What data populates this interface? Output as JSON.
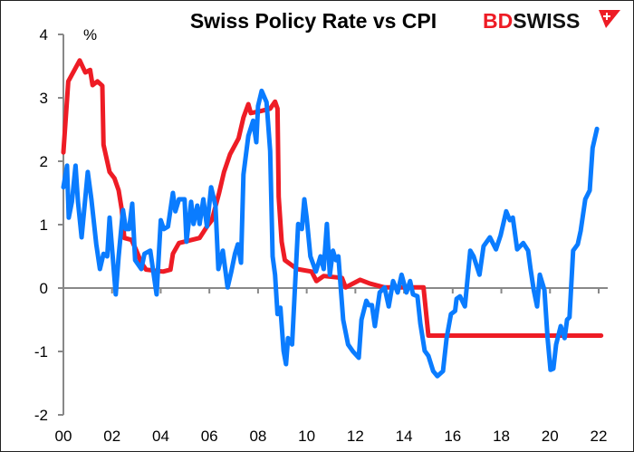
{
  "logo": {
    "part1": "BD",
    "part2": "SWISS",
    "part1_color": "#ee1c25",
    "part2_color": "#111111"
  },
  "chart_data": {
    "type": "line",
    "title": "Swiss Policy Rate vs CPI",
    "ylabel": "%",
    "xlabel": "",
    "xlim": [
      2000,
      2022.4
    ],
    "ylim": [
      -2,
      4
    ],
    "yticks": [
      -2,
      -1,
      0,
      1,
      2,
      3,
      4
    ],
    "xticks": [
      2000,
      2002,
      2004,
      2006,
      2008,
      2010,
      2012,
      2014,
      2016,
      2018,
      2020,
      2022
    ],
    "xtick_labels": [
      "00",
      "02",
      "04",
      "06",
      "08",
      "10",
      "12",
      "14",
      "16",
      "18",
      "20",
      "22"
    ],
    "ytick_labels": [
      "-2",
      "-1",
      "0",
      "1",
      "2",
      "3",
      "4"
    ],
    "grid": false,
    "legend": "none",
    "series": [
      {
        "color": "#ee1c25",
        "points": [
          [
            2000.0,
            2.14
          ],
          [
            2000.2,
            3.26
          ],
          [
            2000.67,
            3.59
          ],
          [
            2000.9,
            3.4
          ],
          [
            2001.1,
            3.44
          ],
          [
            2001.2,
            3.2
          ],
          [
            2001.4,
            3.26
          ],
          [
            2001.6,
            3.19
          ],
          [
            2001.65,
            2.26
          ],
          [
            2001.9,
            1.83
          ],
          [
            2002.1,
            1.73
          ],
          [
            2002.27,
            1.54
          ],
          [
            2002.4,
            1.23
          ],
          [
            2002.5,
            0.79
          ],
          [
            2002.8,
            0.76
          ],
          [
            2003.0,
            0.59
          ],
          [
            2003.2,
            0.4
          ],
          [
            2003.4,
            0.29
          ],
          [
            2004.1,
            0.26
          ],
          [
            2004.4,
            0.29
          ],
          [
            2004.5,
            0.54
          ],
          [
            2004.75,
            0.71
          ],
          [
            2005.6,
            0.79
          ],
          [
            2005.9,
            0.97
          ],
          [
            2006.1,
            1.07
          ],
          [
            2006.4,
            1.5
          ],
          [
            2006.6,
            1.83
          ],
          [
            2006.85,
            2.11
          ],
          [
            2007.2,
            2.36
          ],
          [
            2007.4,
            2.69
          ],
          [
            2007.6,
            2.9
          ],
          [
            2007.7,
            2.76
          ],
          [
            2008.1,
            2.79
          ],
          [
            2008.5,
            2.83
          ],
          [
            2008.7,
            2.94
          ],
          [
            2008.8,
            2.83
          ],
          [
            2008.85,
            1.44
          ],
          [
            2008.97,
            0.73
          ],
          [
            2009.1,
            0.44
          ],
          [
            2009.6,
            0.3
          ],
          [
            2010.2,
            0.26
          ],
          [
            2010.4,
            0.11
          ],
          [
            2010.7,
            0.19
          ],
          [
            2011.45,
            0.16
          ],
          [
            2011.6,
            0.01
          ],
          [
            2012.2,
            0.13
          ],
          [
            2012.6,
            0.07
          ],
          [
            2013.2,
            0.01
          ],
          [
            2014.8,
            0.01
          ],
          [
            2015.0,
            -0.75
          ],
          [
            2022.1,
            -0.75
          ]
        ]
      },
      {
        "color": "#0a7cff",
        "points": [
          [
            2000.0,
            1.59
          ],
          [
            2000.15,
            1.93
          ],
          [
            2000.22,
            1.11
          ],
          [
            2000.35,
            1.36
          ],
          [
            2000.5,
            1.93
          ],
          [
            2000.6,
            1.36
          ],
          [
            2000.75,
            0.8
          ],
          [
            2001.0,
            1.83
          ],
          [
            2001.15,
            1.4
          ],
          [
            2001.35,
            0.69
          ],
          [
            2001.5,
            0.3
          ],
          [
            2001.65,
            0.54
          ],
          [
            2001.8,
            0.5
          ],
          [
            2001.9,
            1.11
          ],
          [
            2002.15,
            -0.1
          ],
          [
            2002.27,
            0.5
          ],
          [
            2002.45,
            1.23
          ],
          [
            2002.57,
            0.93
          ],
          [
            2002.7,
            0.93
          ],
          [
            2002.83,
            1.33
          ],
          [
            2002.95,
            0.44
          ],
          [
            2003.2,
            0.3
          ],
          [
            2003.33,
            0.54
          ],
          [
            2003.57,
            0.59
          ],
          [
            2003.83,
            -0.1
          ],
          [
            2004.0,
            1.07
          ],
          [
            2004.13,
            0.93
          ],
          [
            2004.3,
            0.97
          ],
          [
            2004.5,
            1.5
          ],
          [
            2004.6,
            1.21
          ],
          [
            2004.75,
            1.4
          ],
          [
            2004.98,
            1.4
          ],
          [
            2005.06,
            0.73
          ],
          [
            2005.25,
            1.36
          ],
          [
            2005.35,
            1.01
          ],
          [
            2005.5,
            1.3
          ],
          [
            2005.6,
            1.01
          ],
          [
            2005.75,
            1.4
          ],
          [
            2005.9,
            0.97
          ],
          [
            2006.07,
            1.59
          ],
          [
            2006.25,
            1.3
          ],
          [
            2006.37,
            0.3
          ],
          [
            2006.55,
            0.59
          ],
          [
            2006.75,
            0.01
          ],
          [
            2006.9,
            0.26
          ],
          [
            2007.05,
            0.54
          ],
          [
            2007.17,
            0.69
          ],
          [
            2007.3,
            0.4
          ],
          [
            2007.4,
            1.79
          ],
          [
            2007.6,
            2.4
          ],
          [
            2007.8,
            2.64
          ],
          [
            2007.93,
            2.3
          ],
          [
            2008.0,
            2.87
          ],
          [
            2008.15,
            3.11
          ],
          [
            2008.35,
            2.93
          ],
          [
            2008.5,
            2.16
          ],
          [
            2008.6,
            0.5
          ],
          [
            2008.7,
            0.21
          ],
          [
            2008.8,
            -0.41
          ],
          [
            2008.92,
            -0.31
          ],
          [
            2009.05,
            -0.99
          ],
          [
            2009.15,
            -1.2
          ],
          [
            2009.23,
            -0.79
          ],
          [
            2009.4,
            -0.89
          ],
          [
            2009.65,
            1.01
          ],
          [
            2009.8,
            0.93
          ],
          [
            2009.9,
            1.4
          ],
          [
            2010.0,
            1.11
          ],
          [
            2010.15,
            0.5
          ],
          [
            2010.38,
            0.26
          ],
          [
            2010.57,
            0.5
          ],
          [
            2010.7,
            0.3
          ],
          [
            2010.83,
            1.01
          ],
          [
            2010.95,
            0.21
          ],
          [
            2011.08,
            0.59
          ],
          [
            2011.2,
            0.44
          ],
          [
            2011.3,
            0.5
          ],
          [
            2011.5,
            -0.5
          ],
          [
            2011.7,
            -0.89
          ],
          [
            2011.9,
            -1.0
          ],
          [
            2012.14,
            -1.1
          ],
          [
            2012.25,
            -0.5
          ],
          [
            2012.45,
            -0.2
          ],
          [
            2012.55,
            -0.27
          ],
          [
            2012.68,
            -0.27
          ],
          [
            2012.8,
            -0.6
          ],
          [
            2013.0,
            -0.07
          ],
          [
            2013.2,
            0.01
          ],
          [
            2013.37,
            -0.29
          ],
          [
            2013.55,
            0.11
          ],
          [
            2013.74,
            -0.07
          ],
          [
            2013.9,
            0.21
          ],
          [
            2014.1,
            -0.07
          ],
          [
            2014.25,
            0.11
          ],
          [
            2014.37,
            -0.1
          ],
          [
            2014.55,
            -0.13
          ],
          [
            2014.67,
            -0.56
          ],
          [
            2014.85,
            -0.99
          ],
          [
            2015.0,
            -1.07
          ],
          [
            2015.2,
            -1.31
          ],
          [
            2015.37,
            -1.39
          ],
          [
            2015.6,
            -1.31
          ],
          [
            2015.75,
            -0.79
          ],
          [
            2015.93,
            -0.41
          ],
          [
            2016.1,
            -0.36
          ],
          [
            2016.16,
            -0.17
          ],
          [
            2016.3,
            -0.13
          ],
          [
            2016.5,
            -0.29
          ],
          [
            2016.72,
            0.59
          ],
          [
            2016.86,
            0.5
          ],
          [
            2017.1,
            0.21
          ],
          [
            2017.27,
            0.66
          ],
          [
            2017.53,
            0.8
          ],
          [
            2017.78,
            0.61
          ],
          [
            2017.97,
            0.83
          ],
          [
            2018.2,
            1.21
          ],
          [
            2018.35,
            1.07
          ],
          [
            2018.47,
            1.11
          ],
          [
            2018.65,
            0.61
          ],
          [
            2018.9,
            0.71
          ],
          [
            2019.1,
            0.59
          ],
          [
            2019.2,
            0.3
          ],
          [
            2019.33,
            -0.03
          ],
          [
            2019.47,
            -0.29
          ],
          [
            2019.58,
            0.21
          ],
          [
            2019.77,
            -0.03
          ],
          [
            2019.9,
            -0.79
          ],
          [
            2020.02,
            -1.29
          ],
          [
            2020.14,
            -1.27
          ],
          [
            2020.25,
            -0.89
          ],
          [
            2020.44,
            -0.6
          ],
          [
            2020.6,
            -0.79
          ],
          [
            2020.7,
            -0.5
          ],
          [
            2020.8,
            -0.46
          ],
          [
            2020.95,
            0.59
          ],
          [
            2021.14,
            0.69
          ],
          [
            2021.26,
            0.9
          ],
          [
            2021.45,
            1.4
          ],
          [
            2021.63,
            1.54
          ],
          [
            2021.75,
            2.21
          ],
          [
            2021.93,
            2.51
          ]
        ]
      }
    ]
  }
}
